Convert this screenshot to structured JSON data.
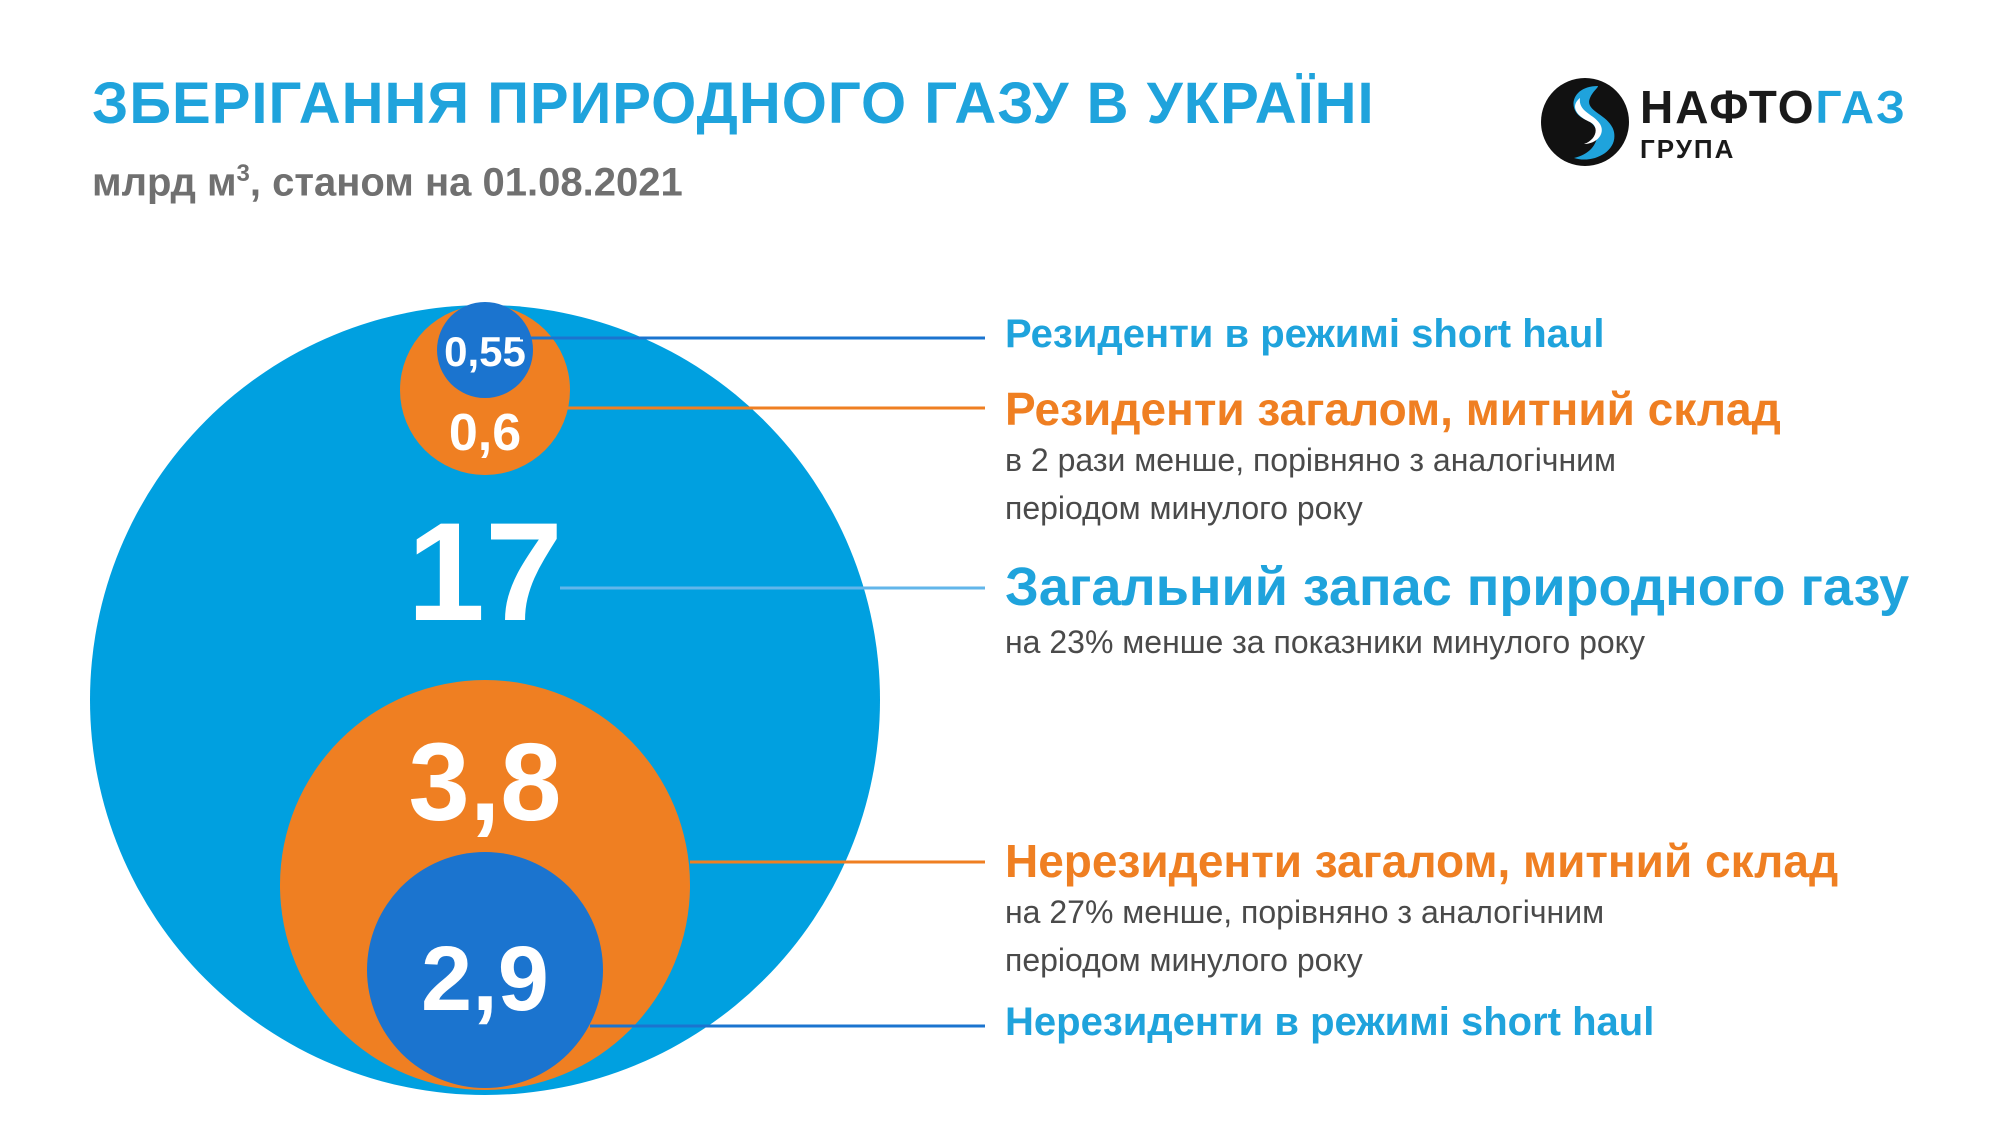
{
  "header": {
    "title": "ЗБЕРІГАННЯ ПРИРОДНОГО ГАЗУ В УКРАЇНІ",
    "subtitle_pre": "млрд м",
    "subtitle_sup": "3",
    "subtitle_post": ", станом на 01.08.2021"
  },
  "logo": {
    "word_dark": "НАФТО",
    "word_accent": "ГАЗ",
    "sub": "ГРУПА"
  },
  "colors": {
    "light_blue": "#00a0e0",
    "orange": "#ef7f22",
    "dark_blue": "#1b74cf",
    "title_blue": "#1fa3dc",
    "grey": "#707070"
  },
  "chart_data": {
    "type": "bubble",
    "unit": "млрд м3",
    "date": "01.08.2021",
    "items": [
      {
        "id": "total",
        "label": "Загальний запас природного газу",
        "value_text": "17",
        "value": 17,
        "color": "#00a0e0",
        "note": [
          "на 23% менше за показники минулого року"
        ]
      },
      {
        "id": "res_total",
        "label": "Резиденти загалом, митний склад",
        "value_text": "0,6",
        "value": 0.6,
        "color": "#ef7f22",
        "note": [
          "в 2 рази менше, порівняно з аналогічним",
          "періодом минулого року"
        ]
      },
      {
        "id": "res_short",
        "label": "Резиденти в режимі short haul",
        "value_text": "0,55",
        "value": 0.55,
        "color": "#1b74cf",
        "note": []
      },
      {
        "id": "nonres_total",
        "label": "Нерезиденти загалом, митний склад",
        "value_text": "3,8",
        "value": 3.8,
        "color": "#ef7f22",
        "note": [
          "на 27% менше, порівняно з аналогічним",
          "періодом минулого року"
        ]
      },
      {
        "id": "nonres_short",
        "label": "Нерезиденти в режимі short haul",
        "value_text": "2,9",
        "value": 2.9,
        "color": "#1b74cf",
        "note": []
      }
    ]
  }
}
